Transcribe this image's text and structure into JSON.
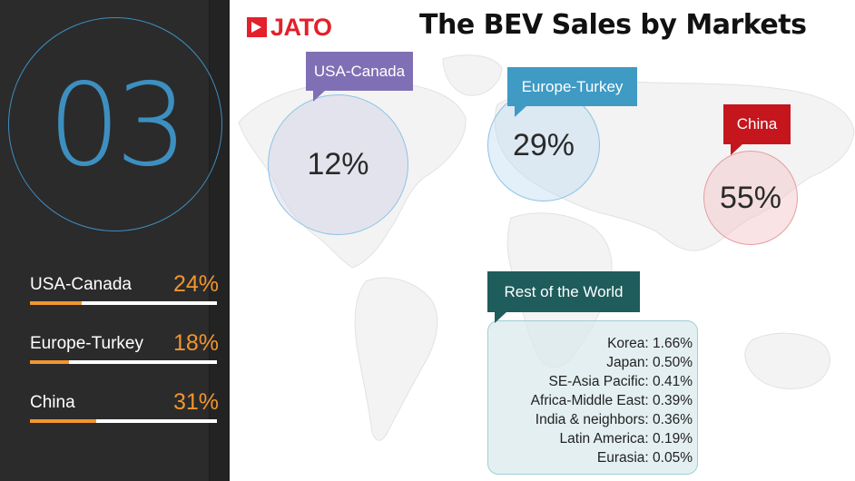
{
  "header": {
    "logo_text": "JATO",
    "title": "The BEV Sales by Markets"
  },
  "sidebar": {
    "number": "03",
    "stats": [
      {
        "label": "USA-Canada",
        "value": "24%",
        "fill_fraction": 0.24
      },
      {
        "label": "Europe-Turkey",
        "value": "18%",
        "fill_fraction": 0.18
      },
      {
        "label": "China",
        "value": "31%",
        "fill_fraction": 0.31
      }
    ]
  },
  "regions": {
    "usa_canada": {
      "label": "USA-Canada",
      "share": "12%",
      "color": "#7f70b5"
    },
    "europe_turkey": {
      "label": "Europe-Turkey",
      "share": "29%",
      "color": "#3f9ac4"
    },
    "china": {
      "label": "China",
      "share": "55%",
      "color": "#c5161e"
    }
  },
  "rest_of_world": {
    "label": "Rest of the World",
    "color": "#1f5c5c",
    "items": [
      "Korea: 1.66%",
      "Japan: 0.50%",
      "SE-Asia Pacific: 0.41%",
      "Africa-Middle East: 0.39%",
      "India & neighbors: 0.36%",
      "Latin America: 0.19%",
      "Eurasia: 0.05%"
    ]
  },
  "colors": {
    "accent_orange": "#f1952f",
    "accent_blue": "#3d8fc0",
    "brand_red": "#e3202b",
    "panel_dark": "#2b2b2b"
  }
}
